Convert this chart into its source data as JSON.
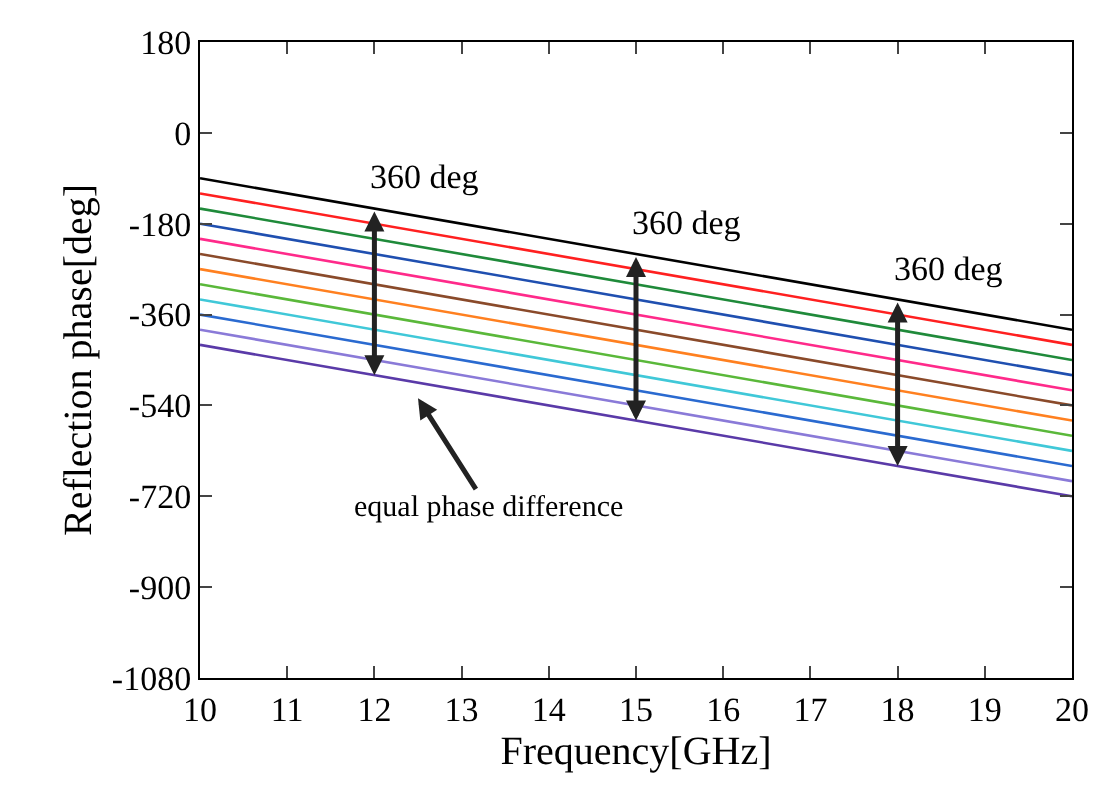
{
  "chart_data": {
    "type": "line",
    "xlabel": "Frequency[GHz]",
    "ylabel": "Reflection phase[deg]",
    "x": [
      10,
      20
    ],
    "series": [
      {
        "color": "#000000",
        "values": [
          -90,
          -390
        ]
      },
      {
        "color": "#ff2020",
        "values": [
          -120,
          -420
        ]
      },
      {
        "color": "#1f8a3a",
        "values": [
          -150,
          -450
        ]
      },
      {
        "color": "#1f4fb0",
        "values": [
          -180,
          -480
        ]
      },
      {
        "color": "#ff2a8a",
        "values": [
          -210,
          -510
        ]
      },
      {
        "color": "#8a4a2a",
        "values": [
          -240,
          -540
        ]
      },
      {
        "color": "#ff8020",
        "values": [
          -270,
          -570
        ]
      },
      {
        "color": "#5ab83a",
        "values": [
          -300,
          -600
        ]
      },
      {
        "color": "#40c8d8",
        "values": [
          -330,
          -630
        ]
      },
      {
        "color": "#2a6ad0",
        "values": [
          -360,
          -660
        ]
      },
      {
        "color": "#8a7ad8",
        "values": [
          -390,
          -690
        ]
      },
      {
        "color": "#5a3aa8",
        "values": [
          -420,
          -720
        ]
      }
    ],
    "xlim": [
      10,
      20
    ],
    "xticks": [
      10,
      11,
      12,
      13,
      14,
      15,
      16,
      17,
      18,
      19,
      20
    ],
    "ylim": [
      -1080,
      180
    ],
    "yticks": [
      -1080,
      -900,
      -720,
      -540,
      -360,
      -180,
      0,
      180
    ],
    "marker": "none",
    "line_style": "solid",
    "annotations": [
      {
        "text": "360 deg",
        "x": 12,
        "y": -150
      },
      {
        "text": "360 deg",
        "x": 15,
        "y": -240
      },
      {
        "text": "360 deg",
        "x": 18,
        "y": -330
      },
      "equal phase difference"
    ]
  }
}
